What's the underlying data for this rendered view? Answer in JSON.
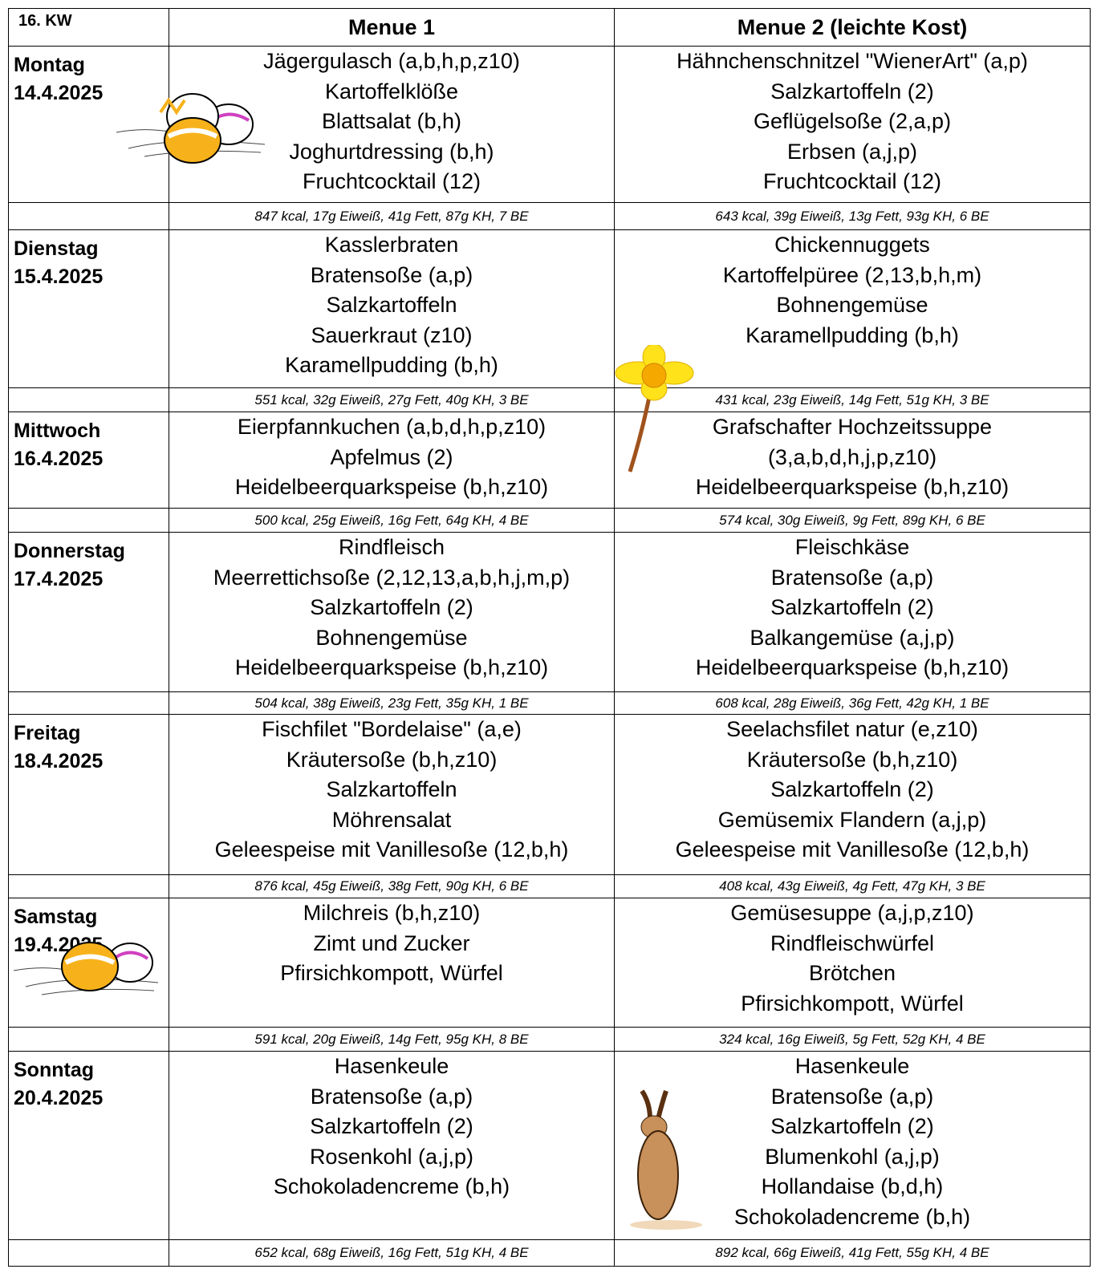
{
  "table": {
    "header": [
      "16. KW",
      "Menue 1",
      "Menue 2 (leichte Kost)"
    ],
    "days": [
      {
        "day": "Montag",
        "date": "14.4.2025",
        "menu1": [
          "Jägergulasch (a,b,h,p,z10)",
          "Kartoffelklöße",
          "Blattsalat (b,h)",
          "Joghurtdressing (b,h)",
          "Fruchtcocktail (12)"
        ],
        "menu2": [
          "Hähnchenschnitzel \"WienerArt\" (a,p)",
          "Salzkartoffeln (2)",
          "Geflügelsoße (2,a,p)",
          "Erbsen (a,j,p)",
          "Fruchtcocktail (12)"
        ],
        "nutrition1": "847 kcal, 17g Eiweiß, 41g Fett, 87g KH, 7 BE",
        "nutrition2": "643 kcal, 39g Eiweiß, 13g Fett, 93g KH, 6 BE"
      },
      {
        "day": "Dienstag",
        "date": "15.4.2025",
        "menu1": [
          "Kasslerbraten",
          "Bratensoße (a,p)",
          "Salzkartoffeln",
          "Sauerkraut (z10)",
          "Karamellpudding (b,h)"
        ],
        "menu2": [
          "Chickennuggets",
          "Kartoffelpüree (2,13,b,h,m)",
          "Bohnengemüse",
          "Karamellpudding (b,h)"
        ],
        "nutrition1": "551 kcal, 32g Eiweiß, 27g Fett, 40g KH, 3 BE",
        "nutrition2": "431 kcal, 23g Eiweiß, 14g Fett, 51g KH, 3 BE"
      },
      {
        "day": "Mittwoch",
        "date": "16.4.2025",
        "menu1": [
          "Eierpfannkuchen (a,b,d,h,p,z10)",
          "Apfelmus (2)",
          "Heidelbeerquarkspeise (b,h,z10)"
        ],
        "menu2": [
          "Grafschafter Hochzeitssuppe",
          "(3,a,b,d,h,j,p,z10)",
          "Heidelbeerquarkspeise (b,h,z10)"
        ],
        "nutrition1": "500 kcal, 25g Eiweiß, 16g Fett, 64g KH, 4 BE",
        "nutrition2": "574 kcal, 30g Eiweiß, 9g Fett, 89g KH, 6 BE"
      },
      {
        "day": "Donnerstag",
        "date": "17.4.2025",
        "menu1": [
          "Rindfleisch",
          "Meerrettichsoße (2,12,13,a,b,h,j,m,p)",
          "Salzkartoffeln (2)",
          "Bohnengemüse",
          "Heidelbeerquarkspeise (b,h,z10)"
        ],
        "menu2": [
          "Fleischkäse",
          "Bratensoße (a,p)",
          "Salzkartoffeln (2)",
          "Balkangemüse (a,j,p)",
          "Heidelbeerquarkspeise (b,h,z10)"
        ],
        "nutrition1": "504 kcal, 38g Eiweiß, 23g Fett, 35g KH, 1 BE",
        "nutrition2": "608 kcal, 28g Eiweiß, 36g Fett, 42g KH, 1 BE"
      },
      {
        "day": "Freitag",
        "date": "18.4.2025",
        "menu1": [
          "Fischfilet \"Bordelaise\" (a,e)",
          "Kräutersoße (b,h,z10)",
          "Salzkartoffeln",
          "Möhrensalat",
          "Geleespeise mit Vanillesoße (12,b,h)"
        ],
        "menu2": [
          "Seelachsfilet natur (e,z10)",
          "Kräutersoße (b,h,z10)",
          "Salzkartoffeln (2)",
          "Gemüsemix Flandern (a,j,p)",
          "Geleespeise mit Vanillesoße (12,b,h)"
        ],
        "nutrition1": "876 kcal, 45g Eiweiß, 38g Fett, 90g KH, 6 BE",
        "nutrition2": "408 kcal, 43g Eiweiß, 4g Fett, 47g KH, 3 BE"
      },
      {
        "day": "Samstag",
        "date": "19.4.2025",
        "menu1": [
          "Milchreis (b,h,z10)",
          "Zimt und Zucker",
          "Pfirsichkompott, Würfel"
        ],
        "menu2": [
          "Gemüsesuppe (a,j,p,z10)",
          "Rindfleischwürfel",
          "Brötchen",
          "Pfirsichkompott, Würfel"
        ],
        "nutrition1": "591 kcal, 20g Eiweiß, 14g Fett, 95g KH, 8 BE",
        "nutrition2": "324 kcal, 16g Eiweiß, 5g Fett, 52g KH, 4 BE"
      },
      {
        "day": "Sonntag",
        "date": "20.4.2025",
        "menu1": [
          "Hasenkeule",
          "Bratensoße (a,p)",
          "Salzkartoffeln (2)",
          "Rosenkohl (a,j,p)",
          "Schokoladencreme (b,h)"
        ],
        "menu2": [
          "Hasenkeule",
          "Bratensoße (a,p)",
          "Salzkartoffeln (2)",
          "Blumenkohl (a,j,p)",
          "Hollandaise (b,d,h)",
          "Schokoladencreme (b,h)"
        ],
        "nutrition1": "652 kcal, 68g Eiweiß, 16g Fett, 51g KH, 4 BE",
        "nutrition2": "892 kcal, 66g Eiweiß, 41g Fett, 55g KH, 4 BE"
      }
    ]
  }
}
